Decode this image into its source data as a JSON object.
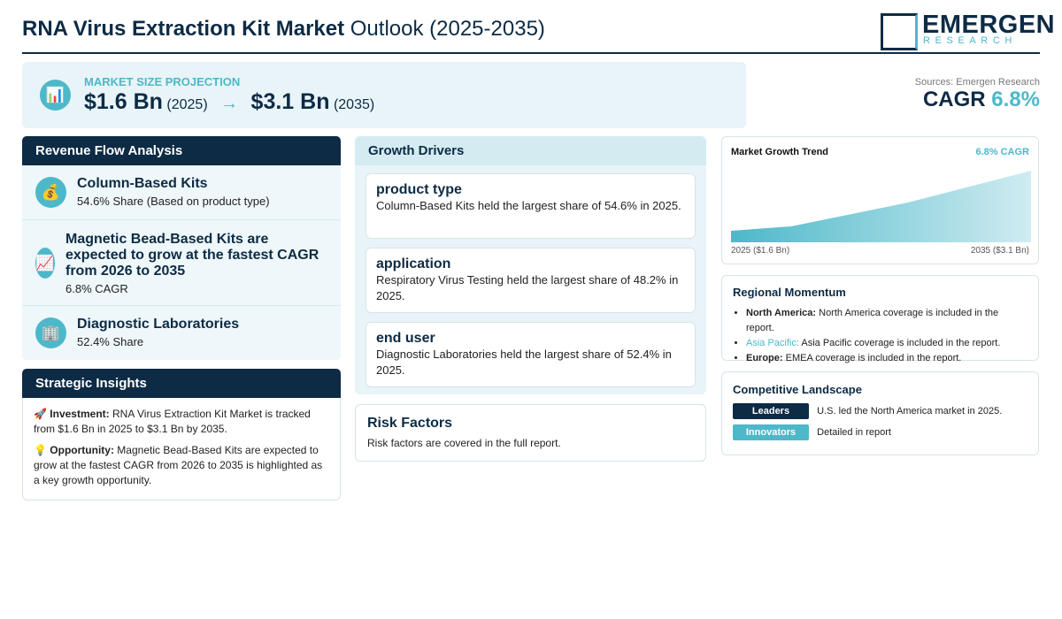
{
  "header": {
    "title_bold": "RNA Virus Extraction Kit Market",
    "title_rest": "Outlook (2025-2035)",
    "logo": {
      "name": "EMERGEN",
      "sub": "RESEARCH"
    }
  },
  "projection": {
    "icon": "📊",
    "label": "MARKET SIZE PROJECTION",
    "start_value": "$1.6 Bn",
    "start_year": "(2025)",
    "arrow": "→",
    "end_value": "$3.1 Bn",
    "end_year": "(2035)"
  },
  "sources": "Sources: Emergen Research",
  "cagr": {
    "label": "CAGR",
    "value": "6.8%"
  },
  "revenue_flow": {
    "title": "Revenue Flow Analysis",
    "items": [
      {
        "icon": "💰",
        "title": "Column-Based Kits",
        "detail": "54.6% Share (Based on product type)"
      },
      {
        "icon": "📈",
        "title": "Magnetic Bead-Based Kits are expected to grow at the fastest CAGR from 2026 to 2035",
        "detail": "6.8% CAGR"
      },
      {
        "icon": "🏢",
        "title": "Diagnostic Laboratories",
        "detail": "52.4% Share"
      }
    ]
  },
  "strategic_insights": {
    "title": "Strategic Insights",
    "items": [
      {
        "icon": "🚀",
        "label": "Investment:",
        "text": "RNA Virus Extraction Kit Market is tracked from $1.6 Bn in 2025 to $3.1 Bn by 2035."
      },
      {
        "icon": "💡",
        "label": "Opportunity:",
        "text": "Magnetic Bead-Based Kits are expected to grow at the fastest CAGR from 2026 to 2035 is highlighted as a key growth opportunity."
      }
    ]
  },
  "growth_drivers": {
    "title": "Growth Drivers",
    "items": [
      {
        "title": "product type",
        "text": "Column-Based Kits held the largest share of 54.6% in 2025."
      },
      {
        "title": "application",
        "text": "Respiratory Virus Testing held the largest share of 48.2% in 2025."
      },
      {
        "title": "end user",
        "text": "Diagnostic Laboratories held the largest share of 52.4% in 2025."
      }
    ]
  },
  "risk_factors": {
    "title": "Risk Factors",
    "text": "Risk factors are covered in the full report."
  },
  "market_growth_trend": {
    "title": "Market Growth Trend",
    "cagr": "6.8% CAGR",
    "start_label": "2025 ($1.6 Bn)",
    "end_label": "2035 ($3.1 Bn)"
  },
  "regional_momentum": {
    "title": "Regional Momentum",
    "items": [
      {
        "region": "North America:",
        "text": "North America coverage is included in the report."
      },
      {
        "region": "Asia Pacific:",
        "text": "Asia Pacific coverage is included in the report."
      },
      {
        "region": "Europe:",
        "text": "EMEA coverage is included in the report."
      }
    ]
  },
  "competitive_landscape": {
    "title": "Competitive Landscape",
    "items": [
      {
        "badge": "Leaders",
        "text": "U.S. led the North America market in 2025."
      },
      {
        "badge": "Innovators",
        "text": "Detailed in report"
      }
    ]
  }
}
